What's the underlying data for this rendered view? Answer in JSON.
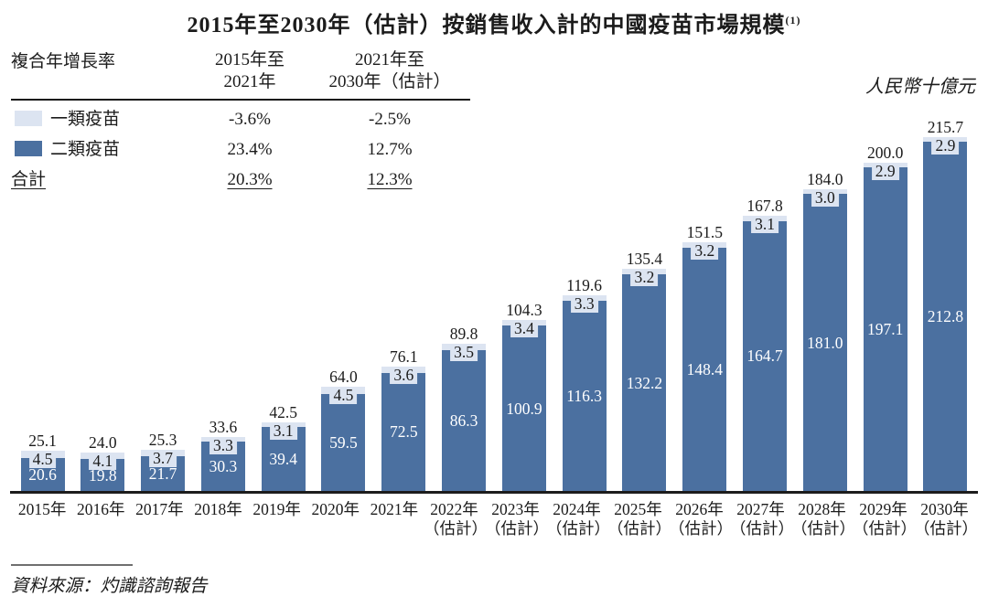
{
  "title": {
    "text": "2015年至2030年（估計）按銷售收入計的中國疫苗市場規模",
    "superscript": "(1)"
  },
  "unit_label": "人民幣十億元",
  "legend": {
    "header_label": "複合年增長率",
    "col1_line1": "2015年至",
    "col1_line2": "2021年",
    "col2_line1": "2021年至",
    "col2_line2": "2030年（估計）",
    "rows": [
      {
        "label": "一類疫苗",
        "c1": "-3.6%",
        "c2": "-2.5%"
      },
      {
        "label": "二類疫苗",
        "c1": "23.4%",
        "c2": "12.7%"
      },
      {
        "label": "合計",
        "c1": "20.3%",
        "c2": "12.3%"
      }
    ]
  },
  "source": "資料來源：灼識諮詢報告",
  "colors": {
    "class1_light_blue": "#dce4f1",
    "class2_dark_blue": "#4b70a0",
    "axis": "#1c1c1c",
    "text": "#1b1b1b"
  },
  "chart_data": {
    "type": "bar",
    "stacked": true,
    "title": "2015年至2030年（估計）按銷售收入計的中國疫苗市場規模(1)",
    "ylabel": "人民幣十億元",
    "xlabel": "",
    "grid": false,
    "legend_position": "top-left",
    "ylim": [
      0,
      240
    ],
    "categories": [
      "2015年",
      "2016年",
      "2017年",
      "2018年",
      "2019年",
      "2020年",
      "2021年",
      "2022年",
      "2023年",
      "2024年",
      "2025年",
      "2026年",
      "2027年",
      "2028年",
      "2029年",
      "2030年"
    ],
    "category_notes": [
      "",
      "",
      "",
      "",
      "",
      "",
      "",
      "（估計）",
      "（估計）",
      "（估計）",
      "（估計）",
      "（估計）",
      "（估計）",
      "（估計）",
      "（估計）",
      "（估計）"
    ],
    "series": [
      {
        "name": "一類疫苗",
        "color": "#dce4f1",
        "position": "top",
        "values": [
          4.5,
          4.1,
          3.7,
          3.3,
          3.1,
          4.5,
          3.6,
          3.5,
          3.4,
          3.3,
          3.2,
          3.2,
          3.1,
          3.0,
          2.9,
          2.9
        ]
      },
      {
        "name": "二類疫苗",
        "color": "#4b70a0",
        "position": "bottom",
        "values": [
          20.6,
          19.8,
          21.7,
          30.3,
          39.4,
          59.5,
          72.5,
          86.3,
          100.9,
          116.3,
          132.2,
          148.4,
          164.7,
          181.0,
          197.1,
          212.8
        ]
      }
    ],
    "totals": [
      25.1,
      24.0,
      25.3,
      33.6,
      42.5,
      64.0,
      76.1,
      89.8,
      104.3,
      119.6,
      135.4,
      151.5,
      167.8,
      184.0,
      200.0,
      215.7
    ],
    "cagr_table": {
      "metric": "複合年增長率",
      "periods": [
        "2015年至2021年",
        "2021年至2030年（估計）"
      ],
      "rows": [
        {
          "name": "一類疫苗",
          "values": [
            "-3.6%",
            "-2.5%"
          ]
        },
        {
          "name": "二類疫苗",
          "values": [
            "23.4%",
            "12.7%"
          ]
        },
        {
          "name": "合計",
          "values": [
            "20.3%",
            "12.3%"
          ]
        }
      ]
    }
  }
}
